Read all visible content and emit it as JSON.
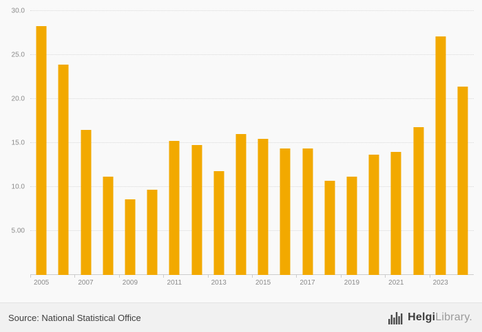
{
  "chart_data": {
    "type": "bar",
    "categories": [
      2005,
      2006,
      2007,
      2008,
      2009,
      2010,
      2011,
      2012,
      2013,
      2014,
      2015,
      2016,
      2017,
      2018,
      2019,
      2020,
      2021,
      2022,
      2023,
      2024
    ],
    "values": [
      28.3,
      23.9,
      16.5,
      11.2,
      8.6,
      9.7,
      15.2,
      14.8,
      11.8,
      16.0,
      15.5,
      14.4,
      14.4,
      10.7,
      11.2,
      13.7,
      14.0,
      16.8,
      27.1,
      21.4
    ],
    "title": "",
    "xlabel": "",
    "ylabel": "",
    "ylim": [
      0,
      30
    ],
    "yticks": [
      5,
      10,
      15,
      20,
      25,
      30
    ],
    "ytick_labels": [
      "5.00",
      "10.0",
      "15.0",
      "20.0",
      "25.0",
      "30.0"
    ],
    "xtick_label_step": 2,
    "grid": "dotted-horizontal",
    "legend_position": "none",
    "bar_color": "#f2a900"
  },
  "footer": {
    "source": "Source: National Statistical Office",
    "logo_bold": "Helgi",
    "logo_light": "Library.",
    "logo_icon_color": "#4a4a4a"
  }
}
